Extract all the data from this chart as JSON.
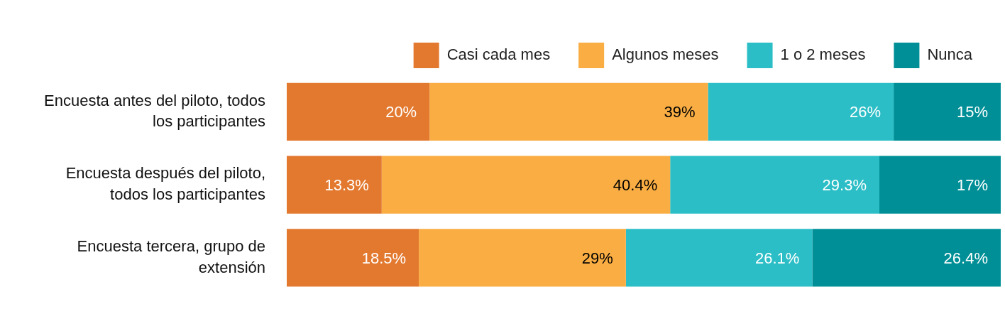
{
  "chart_data": {
    "type": "bar",
    "orientation": "horizontal",
    "stacked": true,
    "legend": "top right",
    "categories": [
      "Encuesta antes del piloto, todos los participantes",
      "Encuesta después del piloto, todos los participantes",
      "Encuesta tercera, grupo de extensión"
    ],
    "xlim": [
      0,
      100
    ],
    "series": [
      {
        "name": "Casi cada mes",
        "color": "#e3792f",
        "values": [
          20,
          13.3,
          18.5
        ],
        "value_labels": [
          "20%",
          "13.3%",
          "18.5%"
        ]
      },
      {
        "name": "Algunos meses",
        "color": "#f9ad43",
        "values": [
          39,
          40.4,
          29
        ],
        "value_labels": [
          "39%",
          "40.4%",
          "29%"
        ]
      },
      {
        "name": "1 o 2 meses",
        "color": "#2bbec6",
        "values": [
          26,
          29.3,
          26.1
        ],
        "value_labels": [
          "26%",
          "29.3%",
          "26.1%"
        ]
      },
      {
        "name": "Nunca",
        "color": "#008f96",
        "values": [
          15,
          17,
          26.4
        ],
        "value_labels": [
          "15%",
          "17%",
          "26.4%"
        ]
      }
    ]
  }
}
